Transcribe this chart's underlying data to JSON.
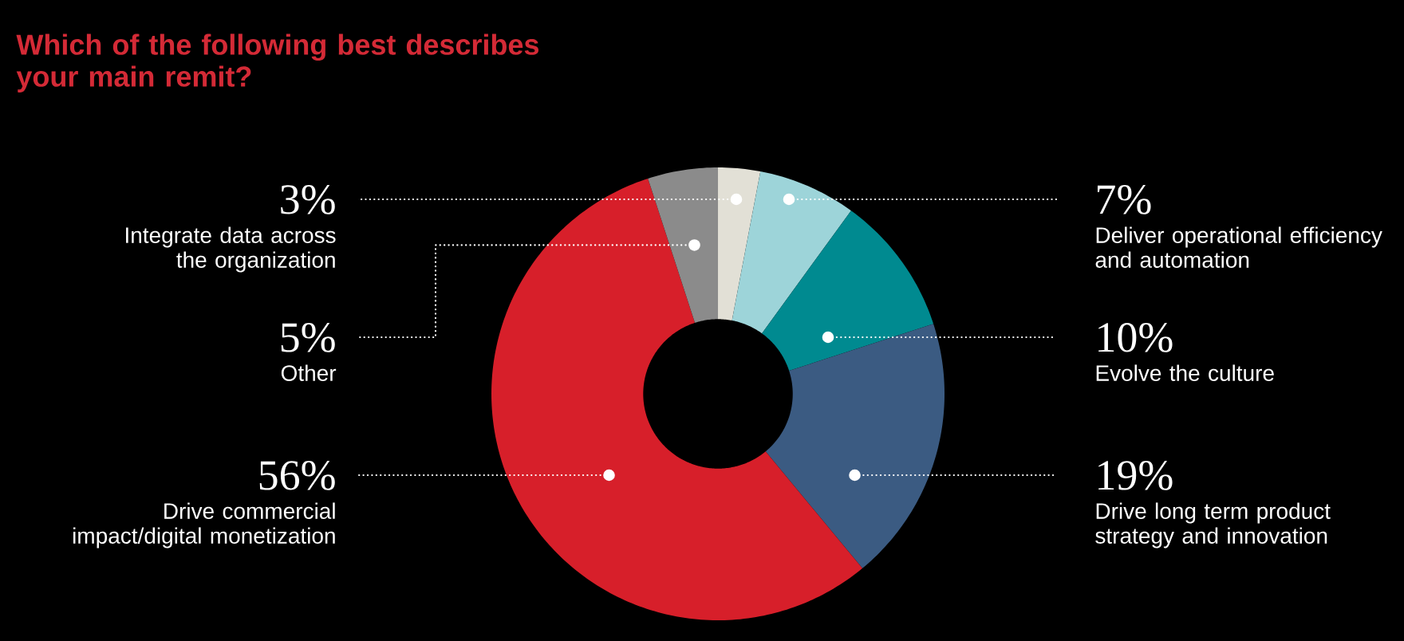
{
  "chart_data": {
    "type": "donut",
    "title": "Which of the following best describes your main remit?",
    "categories": [
      "Integrate data across the organization",
      "Deliver operational efficiency and automation",
      "Evolve the culture",
      "Drive long term product strategy and innovation",
      "Drive commercial impact/digital monetization",
      "Other"
    ],
    "values": [
      3,
      7,
      10,
      19,
      56,
      5
    ],
    "colors": [
      "#e2e0d6",
      "#9dd4d9",
      "#008a90",
      "#3b5b82",
      "#d71f2a",
      "#8b8b8b"
    ],
    "value_labels": [
      "3%",
      "7%",
      "10%",
      "19%",
      "56%",
      "5%"
    ]
  }
}
